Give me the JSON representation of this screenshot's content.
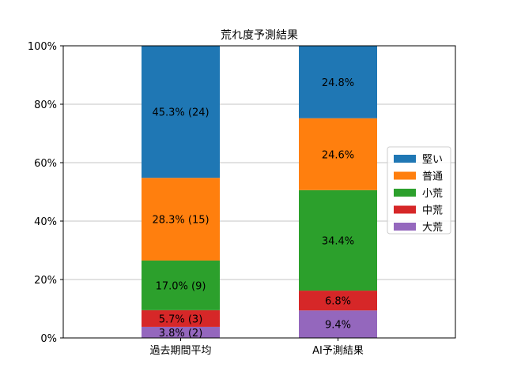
{
  "chart_data": {
    "type": "bar",
    "stacked": true,
    "title": "荒れ度予測結果",
    "xlabel": "",
    "ylabel": "",
    "categories": [
      "過去期間平均",
      "AI予測結果"
    ],
    "ylim": [
      0,
      100
    ],
    "y_ticks": [
      0,
      20,
      40,
      60,
      80,
      100
    ],
    "y_tick_labels": [
      "0%",
      "20%",
      "40%",
      "60%",
      "80%",
      "100%"
    ],
    "grid": "horizontal",
    "legend_position": "right",
    "series": [
      {
        "name": "大荒",
        "color": "#9467bd",
        "values": [
          3.8,
          9.4
        ],
        "labels": [
          "3.8% (2)",
          "9.4%"
        ]
      },
      {
        "name": "中荒",
        "color": "#d62728",
        "values": [
          5.7,
          6.8
        ],
        "labels": [
          "5.7% (3)",
          "6.8%"
        ]
      },
      {
        "name": "小荒",
        "color": "#2ca02c",
        "values": [
          17.0,
          34.4
        ],
        "labels": [
          "17.0% (9)",
          "34.4%"
        ]
      },
      {
        "name": "普通",
        "color": "#ff7f0e",
        "values": [
          28.3,
          24.6
        ],
        "labels": [
          "28.3% (15)",
          "24.6%"
        ]
      },
      {
        "name": "堅い",
        "color": "#1f77b4",
        "values": [
          45.3,
          24.8
        ],
        "labels": [
          "45.3% (24)",
          "24.8%"
        ]
      }
    ],
    "legend_order": [
      "堅い",
      "普通",
      "小荒",
      "中荒",
      "大荒"
    ]
  }
}
